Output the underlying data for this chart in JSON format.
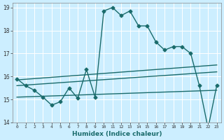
{
  "title": "",
  "xlabel": "Humidex (Indice chaleur)",
  "bg_color": "#cceeff",
  "line_color": "#1a6b6b",
  "grid_color": "#ffffff",
  "xlim": [
    -0.5,
    23.5
  ],
  "ylim": [
    14,
    19.2
  ],
  "yticks": [
    14,
    15,
    16,
    17,
    18,
    19
  ],
  "xticks": [
    0,
    1,
    2,
    3,
    4,
    5,
    6,
    7,
    8,
    9,
    10,
    11,
    12,
    13,
    14,
    15,
    16,
    17,
    18,
    19,
    20,
    21,
    22,
    23
  ],
  "series1_x": [
    0,
    1,
    2,
    3,
    4,
    5,
    6,
    7,
    8,
    9,
    10,
    11,
    12,
    13,
    14,
    15,
    16,
    17,
    18,
    19,
    20,
    21,
    22,
    23
  ],
  "series1_y": [
    15.9,
    15.6,
    15.4,
    15.1,
    14.75,
    14.9,
    15.5,
    15.05,
    16.3,
    15.1,
    18.85,
    19.0,
    18.65,
    18.85,
    18.2,
    18.2,
    17.5,
    17.15,
    17.3,
    17.3,
    17.0,
    15.6,
    13.75,
    15.6
  ],
  "series2_x": [
    0,
    23
  ],
  "series2_y": [
    15.85,
    16.5
  ],
  "series3_x": [
    0,
    23
  ],
  "series3_y": [
    15.6,
    16.2
  ],
  "series4_x": [
    0,
    23
  ],
  "series4_y": [
    15.1,
    15.4
  ],
  "marker": "D",
  "markersize": 2.5,
  "linewidth": 1.0
}
